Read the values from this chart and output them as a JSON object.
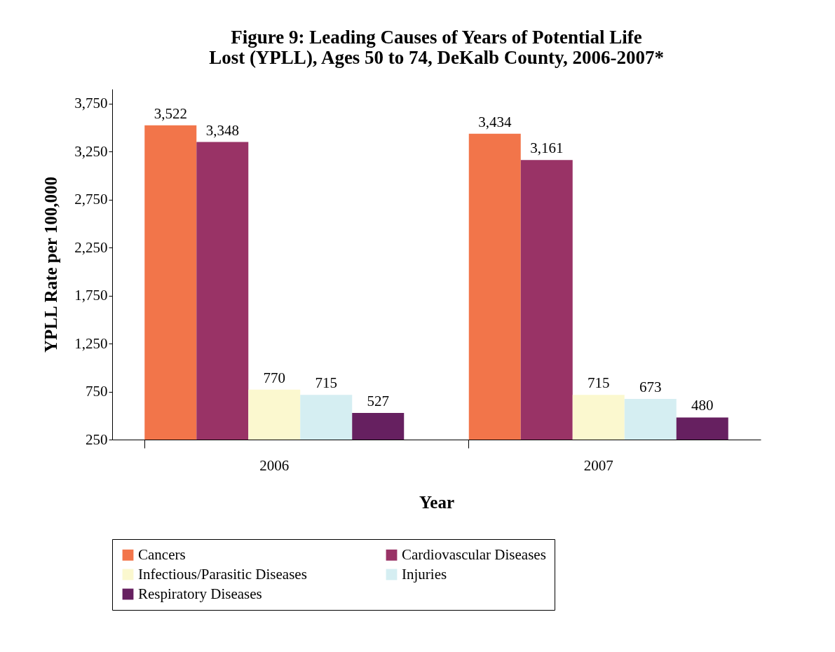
{
  "chart_data": {
    "type": "bar",
    "title": "Figure 9: Leading Causes of Years of Potential Life\nLost (YPLL), Ages 50 to 74, DeKalb County, 2006-2007*",
    "xlabel": "Year",
    "ylabel": "YPLL Rate per 100,000",
    "categories": [
      "2006",
      "2007"
    ],
    "series": [
      {
        "name": "Cancers",
        "color": "#f2754a",
        "values": [
          3522,
          3434
        ],
        "value_labels": [
          "3,522",
          "3,434"
        ]
      },
      {
        "name": "Cardiovascular Diseases",
        "color": "#993366",
        "values": [
          3348,
          3161
        ],
        "value_labels": [
          "3,348",
          "3,161"
        ]
      },
      {
        "name": "Infectious/Parasitic Diseases",
        "color": "#fbf8cf",
        "values": [
          770,
          715
        ],
        "value_labels": [
          "770",
          "715"
        ]
      },
      {
        "name": "Injuries",
        "color": "#d5eef2",
        "values": [
          715,
          673
        ],
        "value_labels": [
          "715",
          "673"
        ]
      },
      {
        "name": "Respiratory Diseases",
        "color": "#662060",
        "values": [
          527,
          480
        ],
        "value_labels": [
          "527",
          "480"
        ]
      }
    ],
    "ylim": [
      250,
      3900
    ],
    "yticks": [
      250,
      750,
      {
        "value": 1250,
        "label": "1,250"
      },
      {
        "value": 1750,
        "label": "1,750"
      },
      {
        "value": 2250,
        "label": "2,250"
      },
      {
        "value": 2750,
        "label": "2,750"
      },
      {
        "value": 3250,
        "label": "3,250"
      },
      {
        "value": 3750,
        "label": "3,750"
      }
    ],
    "grid": false,
    "legend": "bottom"
  }
}
